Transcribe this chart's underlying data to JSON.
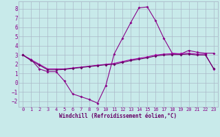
{
  "bg_color": "#c8eaea",
  "grid_color": "#aab8c8",
  "line_color_main": "#880088",
  "line_color_trend1": "#aa00aa",
  "line_color_trend2": "#660066",
  "xlabel": "Windchill (Refroidissement éolien,°C)",
  "xlim": [
    -0.5,
    23.5
  ],
  "ylim": [
    -2.6,
    8.8
  ],
  "x_ticks": [
    0,
    1,
    2,
    3,
    4,
    5,
    6,
    7,
    8,
    9,
    10,
    11,
    12,
    13,
    14,
    15,
    16,
    17,
    18,
    19,
    20,
    21,
    22,
    23
  ],
  "y_ticks": [
    -2,
    -1,
    0,
    1,
    2,
    3,
    4,
    5,
    6,
    7,
    8
  ],
  "series1_x": [
    0,
    1,
    2,
    3,
    4,
    5,
    6,
    7,
    8,
    9,
    10,
    11,
    12,
    13,
    14,
    15,
    16,
    17,
    18,
    19,
    20,
    21,
    22,
    23
  ],
  "series1_y": [
    3.0,
    2.5,
    1.5,
    1.2,
    1.2,
    0.2,
    -1.2,
    -1.5,
    -1.8,
    -2.2,
    -0.3,
    3.1,
    4.8,
    6.5,
    8.1,
    8.2,
    6.7,
    4.8,
    3.2,
    3.1,
    3.5,
    3.3,
    3.2,
    3.2
  ],
  "series2_x": [
    0,
    1,
    2,
    3,
    4,
    5,
    6,
    7,
    8,
    9,
    10,
    11,
    12,
    13,
    14,
    15,
    16,
    17,
    18,
    19,
    20,
    21,
    22,
    23
  ],
  "series2_y": [
    3.0,
    2.5,
    2.0,
    1.5,
    1.5,
    1.5,
    1.6,
    1.7,
    1.8,
    1.9,
    2.0,
    2.1,
    2.3,
    2.5,
    2.65,
    2.8,
    3.0,
    3.1,
    3.15,
    3.15,
    3.2,
    3.1,
    3.1,
    1.5
  ],
  "series3_x": [
    0,
    1,
    2,
    3,
    4,
    5,
    6,
    7,
    8,
    9,
    10,
    11,
    12,
    13,
    14,
    15,
    16,
    17,
    18,
    19,
    20,
    21,
    22,
    23
  ],
  "series3_y": [
    3.0,
    2.4,
    1.9,
    1.4,
    1.4,
    1.45,
    1.55,
    1.65,
    1.75,
    1.85,
    1.95,
    2.0,
    2.2,
    2.4,
    2.55,
    2.7,
    2.9,
    3.0,
    3.05,
    3.05,
    3.1,
    3.0,
    3.0,
    1.55
  ]
}
